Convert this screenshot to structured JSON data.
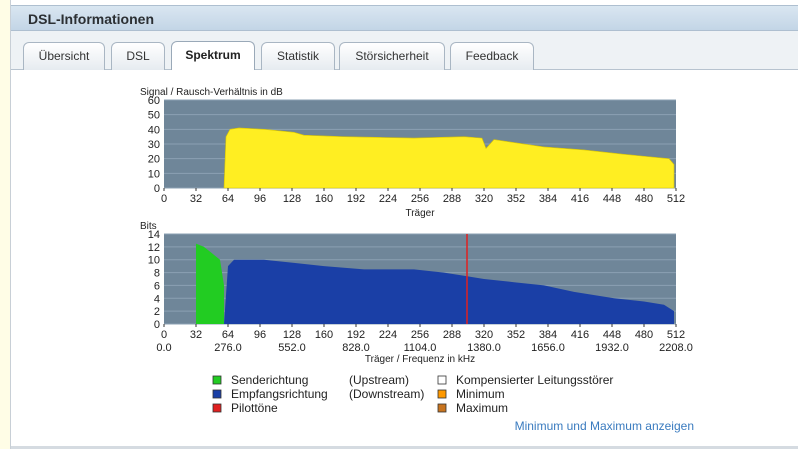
{
  "header": {
    "title": "DSL-Informationen"
  },
  "tabs": [
    {
      "label": "Übersicht",
      "active": false
    },
    {
      "label": "DSL",
      "active": false
    },
    {
      "label": "Spektrum",
      "active": true
    },
    {
      "label": "Statistik",
      "active": false
    },
    {
      "label": "Störsicherheit",
      "active": false
    },
    {
      "label": "Feedback",
      "active": false
    }
  ],
  "colors": {
    "plot_background": "#6f8699",
    "grid": "#8ba0b3",
    "snr_fill": "#ffee22",
    "upstream": "#22cc22",
    "downstream": "#1a3fa6",
    "pilot": "#e02020"
  },
  "chart_data": [
    {
      "type": "area",
      "ylabel": "Signal / Rausch-Verhältnis in dB",
      "xlabel": "Träger",
      "xlim": [
        0,
        512
      ],
      "ylim": [
        0,
        60
      ],
      "x_ticks": [
        "0",
        "32",
        "64",
        "96",
        "128",
        "160",
        "192",
        "224",
        "256",
        "288",
        "320",
        "352",
        "384",
        "416",
        "448",
        "480",
        "512"
      ],
      "y_ticks": [
        "0",
        "10",
        "20",
        "30",
        "40",
        "50",
        "60"
      ],
      "x": [
        60,
        62,
        66,
        75,
        100,
        130,
        140,
        180,
        250,
        300,
        318,
        322,
        330,
        380,
        420,
        460,
        505,
        510
      ],
      "values": [
        0,
        35,
        40,
        41,
        40,
        38,
        36,
        35,
        34,
        35,
        34,
        27,
        33,
        28,
        26,
        23,
        20,
        16
      ]
    },
    {
      "type": "area",
      "ylabel": "Bits",
      "xlabel": "Träger / Frequenz in kHz",
      "xlim": [
        0,
        512
      ],
      "ylim": [
        0,
        14
      ],
      "x_ticks": [
        "0",
        "32",
        "64",
        "96",
        "128",
        "160",
        "192",
        "224",
        "256",
        "288",
        "320",
        "352",
        "384",
        "416",
        "448",
        "480",
        "512"
      ],
      "freq_ticks": [
        "0.0",
        "276.0",
        "552.0",
        "828.0",
        "1104.0",
        "1380.0",
        "1656.0",
        "1932.0",
        "2208.0"
      ],
      "y_ticks": [
        "0",
        "2",
        "4",
        "6",
        "8",
        "10",
        "12",
        "14"
      ],
      "series": [
        {
          "name": "Senderichtung",
          "x": [
            32,
            40,
            48,
            56,
            60
          ],
          "values": [
            12.5,
            12,
            11,
            10,
            6
          ]
        },
        {
          "name": "Empfangsrichtung",
          "x": [
            60,
            64,
            70,
            100,
            130,
            160,
            200,
            250,
            280,
            300,
            320,
            350,
            380,
            410,
            450,
            480,
            500,
            510
          ],
          "values": [
            0,
            9,
            10,
            10,
            9.5,
            9,
            8.5,
            8.5,
            8,
            7.5,
            7,
            6.5,
            6,
            5,
            4,
            3.5,
            3,
            2
          ]
        },
        {
          "name": "Pilottöne",
          "x": [
            303
          ],
          "values": [
            14
          ]
        }
      ]
    }
  ],
  "legend": [
    {
      "color": "#22cc22",
      "label": "Senderichtung",
      "note": "(Upstream)"
    },
    {
      "color": "#1a3fa6",
      "label": "Empfangsrichtung",
      "note": "(Downstream)"
    },
    {
      "color": "#e02020",
      "label": "Pilottöne",
      "note": ""
    },
    {
      "color": "#ffffff",
      "label": "Kompensierter Leitungsstörer",
      "note": ""
    },
    {
      "color": "#ff9900",
      "label": "Minimum",
      "note": ""
    },
    {
      "color": "#c8741f",
      "label": "Maximum",
      "note": ""
    }
  ],
  "link": {
    "label": "Minimum und Maximum anzeigen"
  }
}
